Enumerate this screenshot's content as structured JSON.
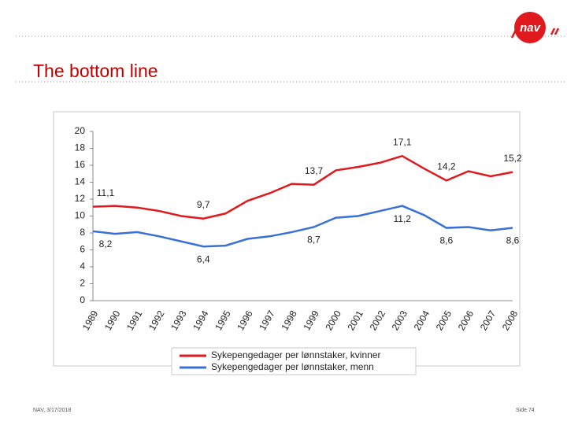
{
  "slide": {
    "title": "The bottom line",
    "logo": "nav",
    "footer_left": "NAV, 3/17/2018",
    "footer_right": "Side 74"
  },
  "chart_data": {
    "type": "line",
    "categories": [
      "1989",
      "1990",
      "1991",
      "1992",
      "1993",
      "1994",
      "1995",
      "1996",
      "1997",
      "1998",
      "1999",
      "2000",
      "2001",
      "2002",
      "2003",
      "2004",
      "2005",
      "2006",
      "2007",
      "2008"
    ],
    "series": [
      {
        "name": "Sykepengedager per lønnstaker, kvinner",
        "color": "#e0191f",
        "values": [
          11.1,
          11.2,
          11.0,
          10.6,
          10.0,
          9.7,
          10.3,
          11.8,
          12.7,
          13.8,
          13.7,
          15.4,
          15.8,
          16.3,
          17.1,
          15.6,
          14.2,
          15.3,
          14.7,
          15.2
        ],
        "value_labels": [
          "11,1",
          null,
          null,
          null,
          null,
          "9,7",
          null,
          null,
          null,
          null,
          "13,7",
          null,
          null,
          null,
          "17,1",
          null,
          "14,2",
          null,
          null,
          "15,2"
        ]
      },
      {
        "name": "Sykepengedager per lønnstaker, menn",
        "color": "#3a6fd8",
        "values": [
          8.2,
          7.9,
          8.1,
          7.6,
          7.0,
          6.4,
          6.5,
          7.3,
          7.6,
          8.1,
          8.7,
          9.8,
          10.0,
          10.6,
          11.2,
          10.1,
          8.6,
          8.7,
          8.3,
          8.6
        ],
        "value_labels": [
          "8,2",
          null,
          null,
          null,
          null,
          "6,4",
          null,
          null,
          null,
          null,
          "8,7",
          null,
          null,
          null,
          "11,2",
          null,
          "8,6",
          null,
          null,
          "8,6"
        ]
      }
    ],
    "ylim": [
      0,
      20
    ],
    "yticks": [
      0,
      2,
      4,
      6,
      8,
      10,
      12,
      14,
      16,
      18,
      20
    ],
    "grid": false,
    "legend": "bottom"
  }
}
